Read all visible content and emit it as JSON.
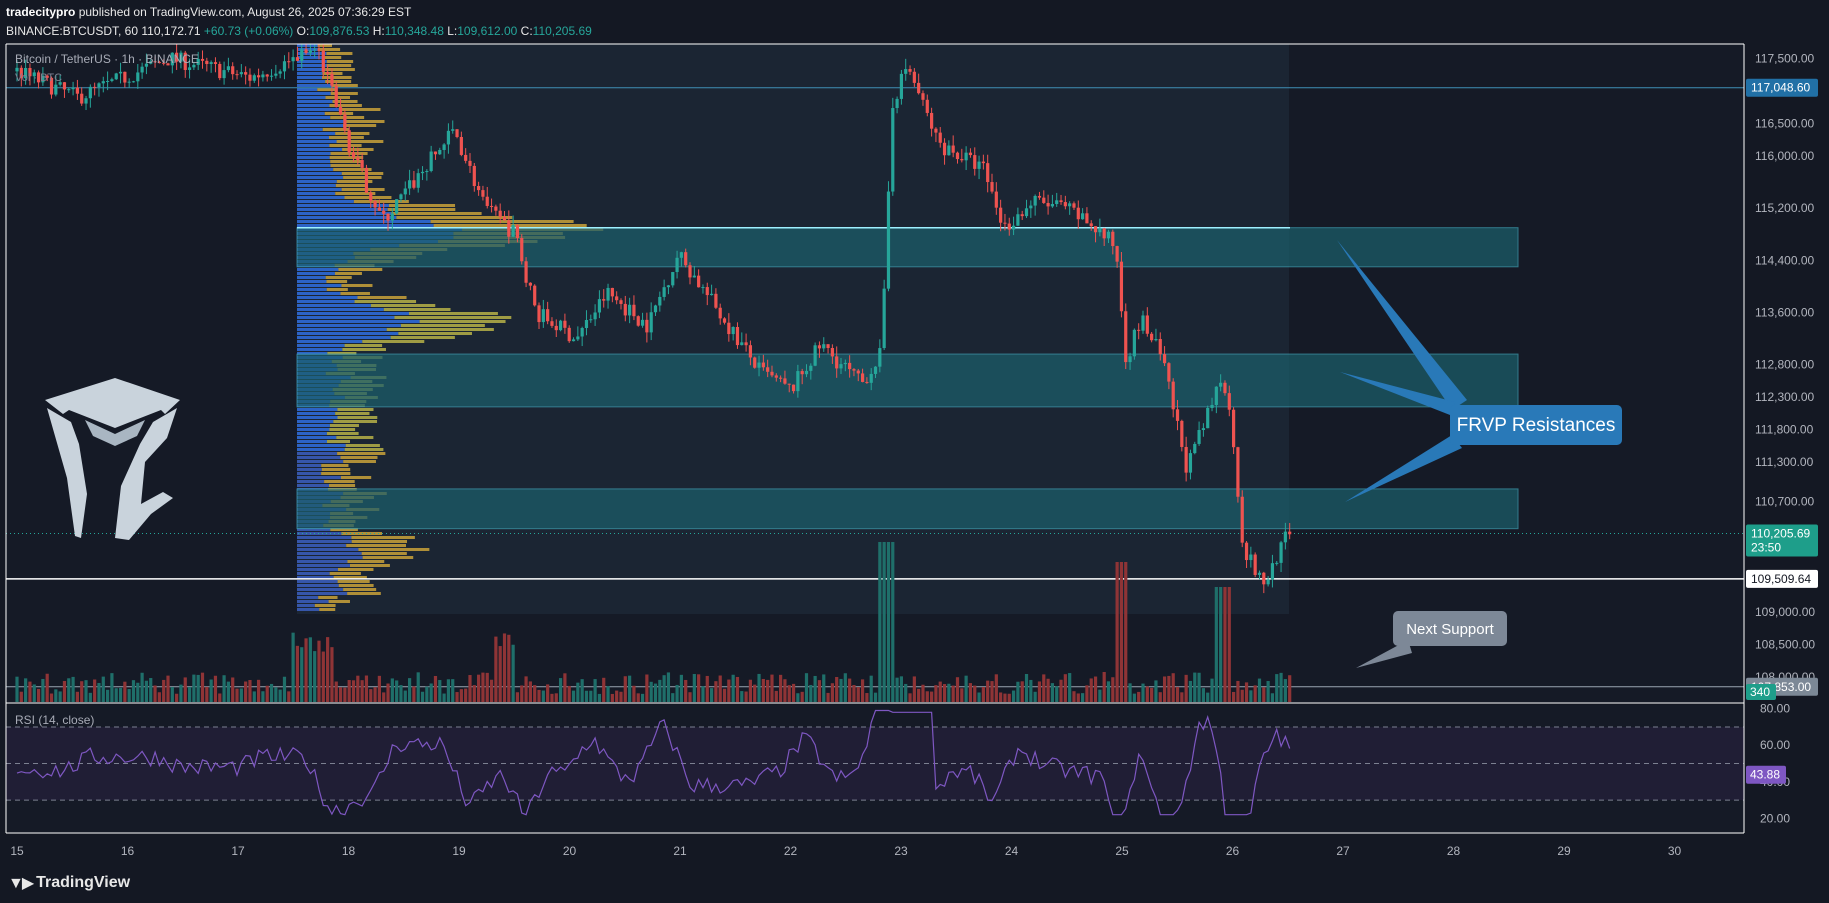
{
  "header": {
    "publisher_user": "tradecitypro",
    "publisher_rest": " published on TradingView.com, August 26, 2025 07:36:29 EST",
    "symbol": "BINANCE:BTCUSDT, 60",
    "last": "110,172.71",
    "change": "+60.73 (+0.06%)",
    "o_label": "O:",
    "o": "109,876.53",
    "h_label": "H:",
    "h": "110,348.48",
    "l_label": "L:",
    "l": "109,612.00",
    "c_label": "C:",
    "c": "110,205.69"
  },
  "legend": {
    "title": "Bitcoin / TetherUS · 1h · BINANCE",
    "volume": "Vol · BTC",
    "rsi": "RSI (14, close)"
  },
  "branding": {
    "footer": "TradingView"
  },
  "colors": {
    "up": "#26a69a",
    "down": "#ef5350",
    "zone": "#1b5e6b",
    "callout": "#2979b8",
    "rsi": "#7e57c2",
    "price_tag": "#1e9e8a"
  },
  "chart_data": {
    "type": "candlestick",
    "symbol": "BTCUSDT",
    "interval": "1h",
    "x_ticks": [
      "15",
      "16",
      "17",
      "18",
      "19",
      "20",
      "21",
      "22",
      "23",
      "24",
      "25",
      "26",
      "27",
      "28",
      "29",
      "30"
    ],
    "y_ticks": [
      "117,500.00",
      "116,500.00",
      "116,000.00",
      "115,200.00",
      "114,400.00",
      "113,600.00",
      "112,800.00",
      "112,300.00",
      "111,800.00",
      "111,300.00",
      "110,700.00",
      "109,000.00",
      "108,500.00",
      "108,000.00"
    ],
    "y_tick_values": [
      117500,
      116500,
      116000,
      115200,
      114400,
      113600,
      112800,
      112300,
      111800,
      111300,
      110700,
      109000,
      108500,
      108000
    ],
    "price_labels": [
      {
        "text": "117,048.60",
        "value": 117048.6,
        "style": "blue"
      },
      {
        "text": "110,205.69",
        "sub": "23:50",
        "value": 110205.69,
        "style": "green"
      },
      {
        "text": "109,509.64",
        "value": 109509.64,
        "style": "white"
      },
      {
        "text": "107,853.00",
        "value": 107853,
        "style": "gray"
      }
    ],
    "horizontal_lines": [
      117048.6,
      109509.64,
      107853
    ],
    "resistance_zones": [
      [
        114300,
        114900
      ],
      [
        112150,
        112960
      ],
      [
        110280,
        110890
      ]
    ],
    "annotations": [
      {
        "text": "FRVP Resistances",
        "style": "blue-callout"
      },
      {
        "text": "Next Support",
        "style": "gray-callout"
      }
    ],
    "volume_label": "340",
    "volume_partial_tick": "520.00",
    "rsi_ticks": [
      "80.00",
      "60.00",
      "40.00",
      "20.00"
    ],
    "rsi_tick_values": [
      80,
      60,
      40,
      20
    ],
    "rsi_value": "43.88",
    "rsi_bands": [
      30,
      50,
      70
    ],
    "price_range": [
      107700,
      117700
    ],
    "rsi_range": [
      12,
      82
    ]
  }
}
